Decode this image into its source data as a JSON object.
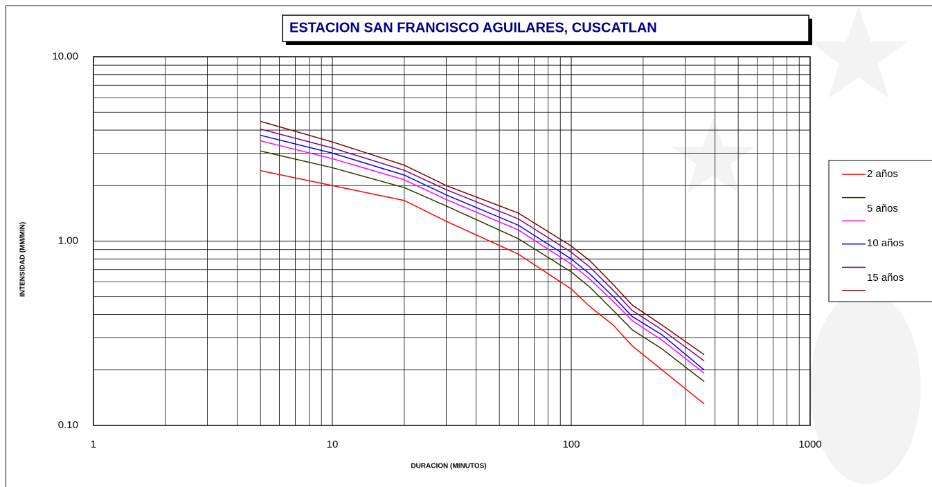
{
  "chart_data": {
    "type": "line",
    "title": "ESTACION SAN FRANCISCO AGUILARES, CUSCATLAN",
    "x_label": "DURACION (MINUTOS)",
    "y_label": "INTENSIDAD (MM/MIN)",
    "xscale": "log",
    "yscale": "log",
    "xlim": [
      1,
      1000
    ],
    "ylim": [
      0.1,
      10
    ],
    "xticks": [
      1,
      10,
      100,
      1000
    ],
    "yticks": [
      {
        "value": 0.1,
        "label": "0.10"
      },
      {
        "value": 1,
        "label": "1.00"
      },
      {
        "value": 10,
        "label": "10.00"
      }
    ],
    "xminorticks": [
      2,
      3,
      4,
      5,
      6,
      7,
      8,
      9,
      20,
      30,
      40,
      50,
      60,
      70,
      80,
      90,
      200,
      300,
      400,
      500,
      600,
      700,
      800,
      900
    ],
    "yminorticks": [
      0.2,
      0.3,
      0.4,
      0.5,
      0.6,
      0.7,
      0.8,
      0.9,
      2,
      3,
      4,
      5,
      6,
      7,
      8,
      9
    ],
    "grid": true,
    "legend": "right",
    "x": [
      5,
      10,
      20,
      30,
      60,
      100,
      120,
      150,
      180,
      240,
      360
    ],
    "series": [
      {
        "name": "2 años",
        "color": "#ff0000",
        "values": [
          2.41,
          2.0,
          1.66,
          1.28,
          0.85,
          0.55,
          0.44,
          0.35,
          0.27,
          0.2,
          0.131
        ]
      },
      {
        "name": "5 años",
        "color": "#333300",
        "values": [
          3.08,
          2.5,
          1.95,
          1.55,
          1.03,
          0.68,
          0.56,
          0.42,
          0.33,
          0.26,
          0.173
        ]
      },
      {
        "color": "#ff00ff",
        "values": [
          3.5,
          2.8,
          2.15,
          1.68,
          1.15,
          0.75,
          0.62,
          0.47,
          0.37,
          0.29,
          0.192
        ]
      },
      {
        "name": "10 años",
        "color": "#0000ff",
        "values": [
          3.75,
          3.0,
          2.28,
          1.78,
          1.22,
          0.8,
          0.66,
          0.5,
          0.39,
          0.31,
          0.2
        ]
      },
      {
        "name": "15 años",
        "color": "#800080",
        "values": [
          4.05,
          3.2,
          2.42,
          1.9,
          1.32,
          0.87,
          0.72,
          0.54,
          0.42,
          0.33,
          0.224
        ]
      },
      {
        "color": "#800000",
        "values": [
          4.46,
          3.45,
          2.58,
          2.0,
          1.42,
          0.94,
          0.78,
          0.58,
          0.45,
          0.35,
          0.242
        ]
      }
    ]
  }
}
